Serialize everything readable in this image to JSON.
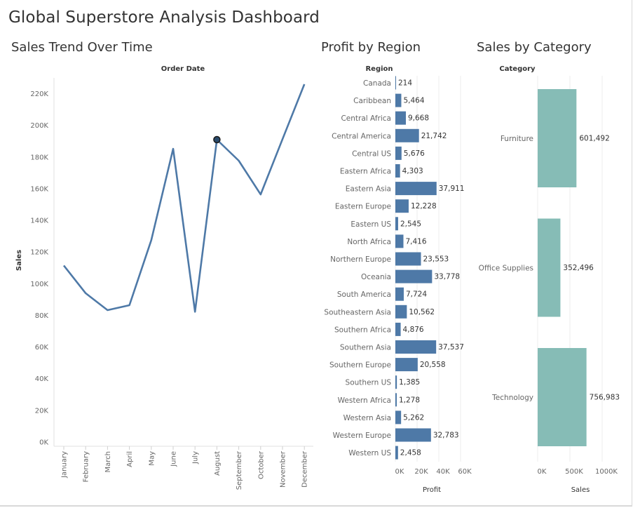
{
  "dashboard": {
    "title": "Global Superstore Analysis Dashboard"
  },
  "panels": {
    "trend_title": "Sales Trend Over Time",
    "region_title": "Profit by Region",
    "category_title": "Sales by Category"
  },
  "colors": {
    "line": "#4e79a7",
    "region_bar": "#4e79a7",
    "category_bar": "#86bcb6",
    "grid": "#eeeeee"
  },
  "chart_data": [
    {
      "type": "line",
      "title": "Sales Trend Over Time",
      "column_header": "Order Date",
      "xlabel": "",
      "ylabel": "Sales",
      "x": [
        "January",
        "February",
        "March",
        "April",
        "May",
        "June",
        "July",
        "August",
        "September",
        "October",
        "November",
        "December"
      ],
      "series": [
        {
          "values": [
            111500,
            94000,
            83300,
            86400,
            127500,
            185200,
            82300,
            191000,
            177700,
            156400,
            191300,
            226000
          ]
        }
      ],
      "highlighted_point": "August",
      "y_ticks": [
        "0K",
        "20K",
        "40K",
        "60K",
        "80K",
        "100K",
        "120K",
        "140K",
        "160K",
        "180K",
        "200K",
        "220K"
      ],
      "ylim": [
        0,
        230000
      ],
      "grid": false
    },
    {
      "type": "bar",
      "orientation": "horizontal",
      "title": "Profit by Region",
      "row_header": "Region",
      "xlabel": "Profit",
      "categories": [
        "Canada",
        "Caribbean",
        "Central Africa",
        "Central America",
        "Central US",
        "Eastern Africa",
        "Eastern Asia",
        "Eastern Europe",
        "Eastern US",
        "North Africa",
        "Northern Europe",
        "Oceania",
        "South America",
        "Southeastern Asia",
        "Southern Africa",
        "Southern Asia",
        "Southern Europe",
        "Southern US",
        "Western Africa",
        "Western Asia",
        "Western Europe",
        "Western US"
      ],
      "values": [
        214,
        5464,
        9668,
        21742,
        5676,
        4303,
        37911,
        12228,
        2545,
        7416,
        23553,
        33778,
        7724,
        10562,
        4876,
        37537,
        20558,
        1385,
        1278,
        5262,
        32783,
        2458
      ],
      "value_labels": [
        "214",
        "5,464",
        "9,668",
        "21,742",
        "5,676",
        "4,303",
        "37,911",
        "12,228",
        "2,545",
        "7,416",
        "23,553",
        "33,778",
        "7,724",
        "10,562",
        "4,876",
        "37,537",
        "20,558",
        "1,385",
        "1,278",
        "5,262",
        "32,783",
        "2,458"
      ],
      "x_ticks": [
        "0K",
        "20K",
        "40K",
        "60K"
      ],
      "xlim": [
        0,
        60000
      ],
      "grid": true
    },
    {
      "type": "bar",
      "orientation": "horizontal",
      "title": "Sales by Category",
      "row_header": "Category",
      "xlabel": "Sales",
      "categories": [
        "Furniture",
        "Office Supplies",
        "Technology"
      ],
      "values": [
        601492,
        352496,
        756983
      ],
      "value_labels": [
        "601,492",
        "352,496",
        "756,983"
      ],
      "x_ticks": [
        "0K",
        "500K",
        "1000K"
      ],
      "xlim": [
        0,
        1000000
      ],
      "grid": true
    }
  ]
}
